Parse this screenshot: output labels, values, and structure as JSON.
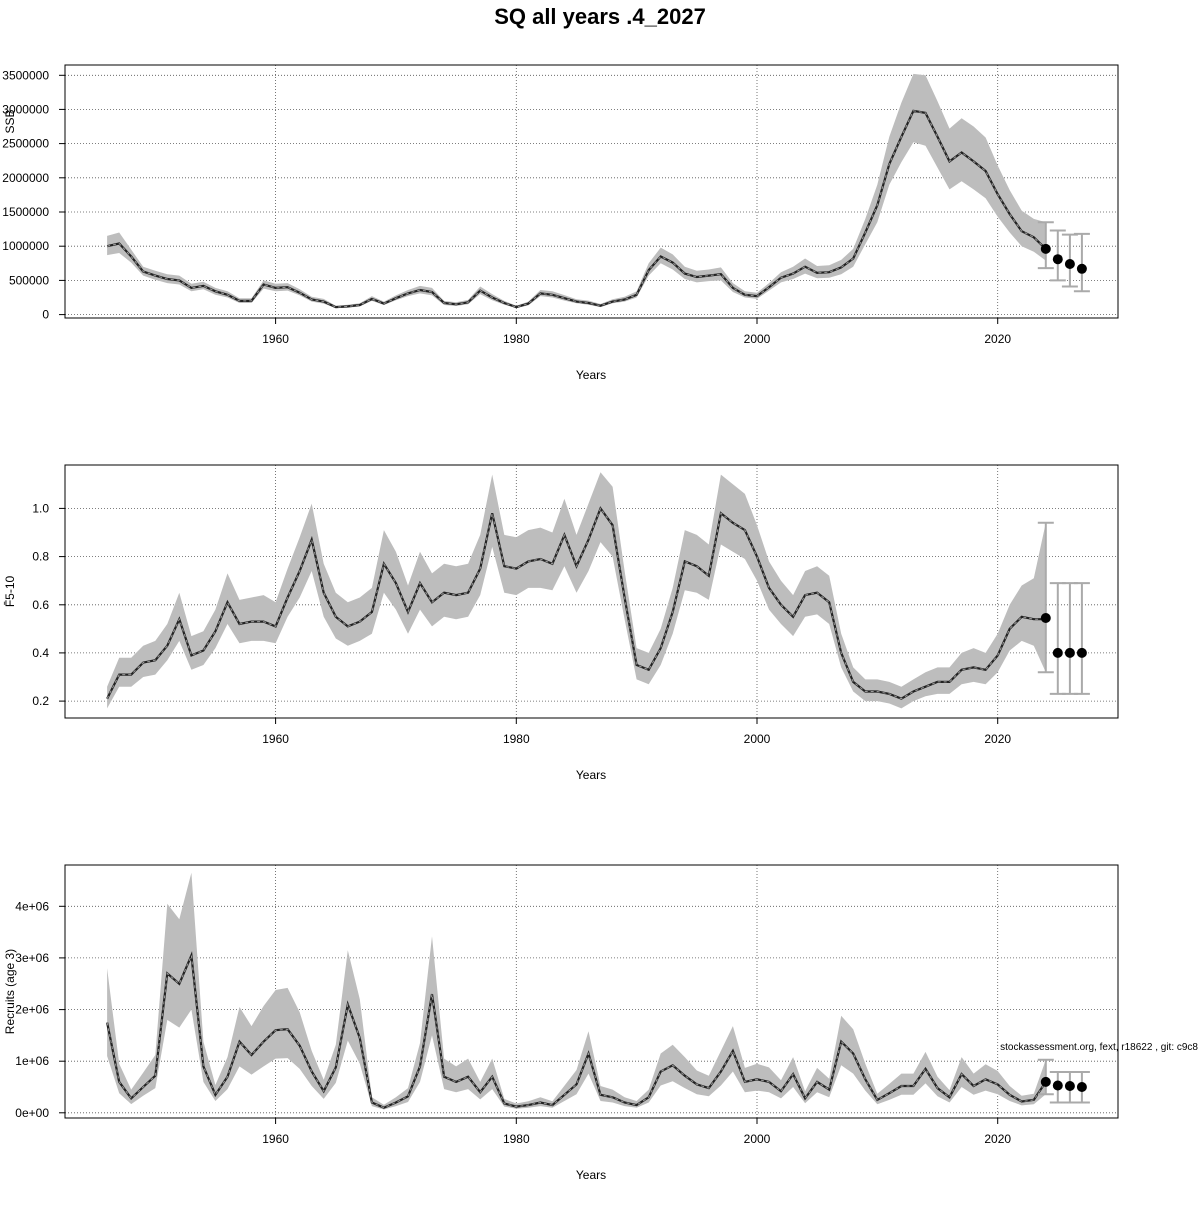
{
  "title": "SQ all years .4_2027",
  "footer_note": "stockassessment.org, fext, r18622 , git: c9c8",
  "colors": {
    "band": "#bdbdbd",
    "line": "#222222",
    "grid": "#555555",
    "errorbar": "#aaaaaa",
    "point": "#000000"
  },
  "chart_data": [
    {
      "type": "line",
      "ylabel": "SSB",
      "xlabel": "Years",
      "x_ticks": [
        1960,
        1980,
        2000,
        2020
      ],
      "y_ticks": [
        0,
        500000,
        1000000,
        1500000,
        2000000,
        2500000,
        3000000,
        3500000
      ],
      "y_tick_labels": [
        "0",
        "500000",
        "1000000",
        "1500000",
        "2000000",
        "2500000",
        "3000000",
        "3500000"
      ],
      "xlim": [
        1942.5,
        2030
      ],
      "ylim": [
        -50000,
        3650000
      ],
      "grid": true,
      "years": [
        1946,
        1947,
        1948,
        1949,
        1950,
        1951,
        1952,
        1953,
        1954,
        1955,
        1956,
        1957,
        1958,
        1959,
        1960,
        1961,
        1962,
        1963,
        1964,
        1965,
        1966,
        1967,
        1968,
        1969,
        1970,
        1971,
        1972,
        1973,
        1974,
        1975,
        1976,
        1977,
        1978,
        1979,
        1980,
        1981,
        1982,
        1983,
        1984,
        1985,
        1986,
        1987,
        1988,
        1989,
        1990,
        1991,
        1992,
        1993,
        1994,
        1995,
        1996,
        1997,
        1998,
        1999,
        2000,
        2001,
        2002,
        2003,
        2004,
        2005,
        2006,
        2007,
        2008,
        2009,
        2010,
        2011,
        2012,
        2013,
        2014,
        2015,
        2016,
        2017,
        2018,
        2019,
        2020,
        2021,
        2022,
        2023,
        2024
      ],
      "values": [
        1000000,
        1040000,
        850000,
        630000,
        570000,
        520000,
        500000,
        390000,
        420000,
        340000,
        290000,
        200000,
        200000,
        440000,
        390000,
        400000,
        320000,
        220000,
        190000,
        110000,
        120000,
        140000,
        230000,
        160000,
        240000,
        310000,
        360000,
        330000,
        170000,
        150000,
        180000,
        350000,
        250000,
        170000,
        110000,
        160000,
        310000,
        290000,
        240000,
        190000,
        170000,
        130000,
        190000,
        220000,
        290000,
        650000,
        850000,
        760000,
        600000,
        550000,
        570000,
        590000,
        390000,
        290000,
        270000,
        400000,
        540000,
        600000,
        700000,
        610000,
        620000,
        690000,
        820000,
        1200000,
        1600000,
        2200000,
        2600000,
        2980000,
        2950000,
        2600000,
        2240000,
        2370000,
        2240000,
        2100000,
        1760000,
        1470000,
        1220000,
        1130000,
        960000
      ],
      "lower": [
        870000,
        900000,
        760000,
        570000,
        510000,
        460000,
        440000,
        340000,
        370000,
        290000,
        250000,
        170000,
        170000,
        380000,
        340000,
        350000,
        280000,
        190000,
        160000,
        95000,
        100000,
        120000,
        200000,
        140000,
        210000,
        270000,
        310000,
        280000,
        140000,
        125000,
        150000,
        300000,
        210000,
        145000,
        95000,
        135000,
        270000,
        250000,
        205000,
        165000,
        145000,
        110000,
        165000,
        190000,
        250000,
        570000,
        750000,
        660000,
        520000,
        470000,
        490000,
        500000,
        330000,
        250000,
        230000,
        350000,
        470000,
        520000,
        600000,
        530000,
        540000,
        590000,
        700000,
        1030000,
        1350000,
        1900000,
        2230000,
        2520000,
        2470000,
        2150000,
        1830000,
        1950000,
        1830000,
        1700000,
        1430000,
        1200000,
        1000000,
        920000,
        790000
      ],
      "upper": [
        1150000,
        1200000,
        950000,
        700000,
        640000,
        590000,
        570000,
        450000,
        480000,
        390000,
        340000,
        240000,
        240000,
        500000,
        450000,
        460000,
        370000,
        260000,
        230000,
        130000,
        145000,
        165000,
        270000,
        190000,
        280000,
        360000,
        420000,
        390000,
        200000,
        180000,
        215000,
        410000,
        300000,
        200000,
        130000,
        190000,
        360000,
        340000,
        285000,
        225000,
        205000,
        155000,
        225000,
        260000,
        340000,
        750000,
        980000,
        880000,
        700000,
        640000,
        660000,
        690000,
        460000,
        340000,
        320000,
        460000,
        620000,
        700000,
        820000,
        710000,
        720000,
        800000,
        960000,
        1400000,
        1900000,
        2600000,
        3100000,
        3520000,
        3500000,
        3120000,
        2720000,
        2870000,
        2750000,
        2590000,
        2180000,
        1820000,
        1520000,
        1400000,
        1350000
      ],
      "forecast": [
        {
          "year": 2024,
          "value": 960000,
          "lower": 680000,
          "upper": 1350000
        },
        {
          "year": 2025,
          "value": 810000,
          "lower": 500000,
          "upper": 1230000
        },
        {
          "year": 2026,
          "value": 740000,
          "lower": 410000,
          "upper": 1170000
        },
        {
          "year": 2027,
          "value": 670000,
          "lower": 340000,
          "upper": 1180000
        }
      ]
    },
    {
      "type": "line",
      "ylabel": "F̄5-10",
      "xlabel": "Years",
      "x_ticks": [
        1960,
        1980,
        2000,
        2020
      ],
      "y_ticks": [
        0.2,
        0.4,
        0.6,
        0.8,
        1.0
      ],
      "y_tick_labels": [
        "0.2",
        "0.4",
        "0.6",
        "0.8",
        "1.0"
      ],
      "xlim": [
        1942.5,
        2030
      ],
      "ylim": [
        0.13,
        1.18
      ],
      "grid": true,
      "years": [
        1946,
        1947,
        1948,
        1949,
        1950,
        1951,
        1952,
        1953,
        1954,
        1955,
        1956,
        1957,
        1958,
        1959,
        1960,
        1961,
        1962,
        1963,
        1964,
        1965,
        1966,
        1967,
        1968,
        1969,
        1970,
        1971,
        1972,
        1973,
        1974,
        1975,
        1976,
        1977,
        1978,
        1979,
        1980,
        1981,
        1982,
        1983,
        1984,
        1985,
        1986,
        1987,
        1988,
        1989,
        1990,
        1991,
        1992,
        1993,
        1994,
        1995,
        1996,
        1997,
        1998,
        1999,
        2000,
        2001,
        2002,
        2003,
        2004,
        2005,
        2006,
        2007,
        2008,
        2009,
        2010,
        2011,
        2012,
        2013,
        2014,
        2015,
        2016,
        2017,
        2018,
        2019,
        2020,
        2021,
        2022,
        2023,
        2024
      ],
      "values": [
        0.21,
        0.31,
        0.31,
        0.36,
        0.37,
        0.43,
        0.54,
        0.39,
        0.41,
        0.49,
        0.61,
        0.52,
        0.53,
        0.53,
        0.51,
        0.63,
        0.74,
        0.87,
        0.65,
        0.55,
        0.51,
        0.53,
        0.57,
        0.77,
        0.69,
        0.57,
        0.69,
        0.61,
        0.65,
        0.64,
        0.65,
        0.75,
        0.98,
        0.76,
        0.75,
        0.78,
        0.79,
        0.77,
        0.89,
        0.76,
        0.87,
        1.0,
        0.93,
        0.63,
        0.35,
        0.33,
        0.42,
        0.57,
        0.78,
        0.76,
        0.72,
        0.98,
        0.94,
        0.91,
        0.8,
        0.67,
        0.6,
        0.55,
        0.64,
        0.65,
        0.61,
        0.4,
        0.28,
        0.24,
        0.24,
        0.23,
        0.21,
        0.24,
        0.26,
        0.28,
        0.28,
        0.33,
        0.34,
        0.33,
        0.39,
        0.5,
        0.55,
        0.54,
        0.54
      ],
      "lower": [
        0.17,
        0.26,
        0.26,
        0.3,
        0.31,
        0.37,
        0.45,
        0.33,
        0.35,
        0.42,
        0.52,
        0.44,
        0.45,
        0.45,
        0.44,
        0.55,
        0.63,
        0.74,
        0.55,
        0.46,
        0.43,
        0.45,
        0.48,
        0.65,
        0.58,
        0.48,
        0.58,
        0.51,
        0.55,
        0.54,
        0.55,
        0.64,
        0.84,
        0.65,
        0.64,
        0.67,
        0.67,
        0.66,
        0.76,
        0.65,
        0.74,
        0.86,
        0.8,
        0.54,
        0.29,
        0.27,
        0.35,
        0.48,
        0.66,
        0.65,
        0.62,
        0.85,
        0.82,
        0.79,
        0.7,
        0.58,
        0.52,
        0.47,
        0.55,
        0.56,
        0.52,
        0.34,
        0.24,
        0.2,
        0.2,
        0.19,
        0.17,
        0.2,
        0.22,
        0.23,
        0.23,
        0.27,
        0.28,
        0.27,
        0.32,
        0.41,
        0.45,
        0.43,
        0.32
      ],
      "upper": [
        0.26,
        0.38,
        0.38,
        0.43,
        0.45,
        0.52,
        0.65,
        0.47,
        0.49,
        0.58,
        0.73,
        0.62,
        0.63,
        0.64,
        0.61,
        0.75,
        0.88,
        1.02,
        0.77,
        0.65,
        0.61,
        0.63,
        0.67,
        0.91,
        0.82,
        0.68,
        0.82,
        0.73,
        0.77,
        0.76,
        0.77,
        0.89,
        1.14,
        0.89,
        0.88,
        0.91,
        0.92,
        0.9,
        1.04,
        0.89,
        1.02,
        1.15,
        1.09,
        0.74,
        0.42,
        0.4,
        0.5,
        0.67,
        0.91,
        0.89,
        0.85,
        1.14,
        1.1,
        1.06,
        0.93,
        0.78,
        0.7,
        0.64,
        0.74,
        0.76,
        0.72,
        0.48,
        0.34,
        0.29,
        0.29,
        0.28,
        0.26,
        0.29,
        0.32,
        0.34,
        0.34,
        0.4,
        0.42,
        0.4,
        0.48,
        0.6,
        0.68,
        0.71,
        0.94
      ],
      "forecast": [
        {
          "year": 2024,
          "value": 0.545,
          "lower": 0.32,
          "upper": 0.94
        },
        {
          "year": 2025,
          "value": 0.4,
          "lower": 0.23,
          "upper": 0.69
        },
        {
          "year": 2026,
          "value": 0.4,
          "lower": 0.23,
          "upper": 0.69
        },
        {
          "year": 2027,
          "value": 0.4,
          "lower": 0.23,
          "upper": 0.69
        }
      ]
    },
    {
      "type": "line",
      "ylabel": "Recruits (age 3)",
      "xlabel": "Years",
      "x_ticks": [
        1960,
        1980,
        2000,
        2020
      ],
      "y_ticks": [
        0,
        1000000,
        2000000,
        3000000,
        4000000
      ],
      "y_tick_labels": [
        "0e+00",
        "1e+06",
        "2e+06",
        "3e+06",
        "4e+06"
      ],
      "xlim": [
        1942.5,
        2030
      ],
      "ylim": [
        -100000,
        4800000
      ],
      "grid": true,
      "years": [
        1946,
        1947,
        1948,
        1949,
        1950,
        1951,
        1952,
        1953,
        1954,
        1955,
        1956,
        1957,
        1958,
        1959,
        1960,
        1961,
        1962,
        1963,
        1964,
        1965,
        1966,
        1967,
        1968,
        1969,
        1970,
        1971,
        1972,
        1973,
        1974,
        1975,
        1976,
        1977,
        1978,
        1979,
        1980,
        1981,
        1982,
        1983,
        1984,
        1985,
        1986,
        1987,
        1988,
        1989,
        1990,
        1991,
        1992,
        1993,
        1994,
        1995,
        1996,
        1997,
        1998,
        1999,
        2000,
        2001,
        2002,
        2003,
        2004,
        2005,
        2006,
        2007,
        2008,
        2009,
        2010,
        2011,
        2012,
        2013,
        2014,
        2015,
        2016,
        2017,
        2018,
        2019,
        2020,
        2021,
        2022,
        2023,
        2024
      ],
      "values": [
        1750000,
        600000,
        280000,
        500000,
        720000,
        2700000,
        2500000,
        3050000,
        900000,
        350000,
        700000,
        1380000,
        1120000,
        1380000,
        1600000,
        1620000,
        1300000,
        800000,
        420000,
        880000,
        2100000,
        1450000,
        200000,
        100000,
        200000,
        320000,
        900000,
        2300000,
        700000,
        600000,
        700000,
        400000,
        700000,
        180000,
        120000,
        150000,
        200000,
        150000,
        350000,
        550000,
        1150000,
        350000,
        300000,
        200000,
        150000,
        300000,
        800000,
        920000,
        720000,
        550000,
        480000,
        800000,
        1200000,
        600000,
        650000,
        600000,
        420000,
        750000,
        280000,
        600000,
        450000,
        1380000,
        1150000,
        650000,
        250000,
        380000,
        520000,
        520000,
        850000,
        480000,
        300000,
        750000,
        520000,
        650000,
        550000,
        350000,
        220000,
        250000,
        600000
      ],
      "lower": [
        1100000,
        380000,
        170000,
        330000,
        480000,
        1800000,
        1650000,
        2000000,
        600000,
        230000,
        460000,
        900000,
        740000,
        900000,
        1050000,
        1060000,
        850000,
        520000,
        270000,
        580000,
        1400000,
        950000,
        130000,
        65000,
        130000,
        210000,
        600000,
        1500000,
        460000,
        400000,
        460000,
        260000,
        460000,
        120000,
        80000,
        100000,
        130000,
        100000,
        230000,
        360000,
        760000,
        230000,
        200000,
        130000,
        100000,
        200000,
        530000,
        610000,
        480000,
        360000,
        320000,
        530000,
        800000,
        400000,
        430000,
        400000,
        280000,
        500000,
        185000,
        400000,
        300000,
        920000,
        760000,
        430000,
        165000,
        250000,
        350000,
        350000,
        570000,
        320000,
        200000,
        500000,
        350000,
        430000,
        360000,
        230000,
        145000,
        165000,
        360000
      ],
      "upper": [
        2800000,
        950000,
        450000,
        780000,
        1120000,
        4050000,
        3750000,
        4650000,
        1380000,
        540000,
        1080000,
        2050000,
        1680000,
        2070000,
        2380000,
        2420000,
        1950000,
        1200000,
        640000,
        1320000,
        3150000,
        2200000,
        300000,
        155000,
        300000,
        480000,
        1350000,
        3420000,
        1050000,
        900000,
        1050000,
        600000,
        1050000,
        270000,
        180000,
        225000,
        300000,
        225000,
        525000,
        830000,
        1580000,
        520000,
        450000,
        300000,
        230000,
        450000,
        1150000,
        1320000,
        1080000,
        820000,
        720000,
        1200000,
        1680000,
        870000,
        950000,
        880000,
        630000,
        1080000,
        420000,
        870000,
        660000,
        1880000,
        1620000,
        950000,
        370000,
        560000,
        760000,
        760000,
        1180000,
        700000,
        440000,
        1080000,
        760000,
        940000,
        810000,
        520000,
        330000,
        370000,
        1030000
      ],
      "forecast": [
        {
          "year": 2024,
          "value": 600000,
          "lower": 360000,
          "upper": 1030000
        },
        {
          "year": 2025,
          "value": 530000,
          "lower": 200000,
          "upper": 790000
        },
        {
          "year": 2026,
          "value": 520000,
          "lower": 200000,
          "upper": 790000
        },
        {
          "year": 2027,
          "value": 500000,
          "lower": 200000,
          "upper": 790000
        }
      ]
    }
  ]
}
